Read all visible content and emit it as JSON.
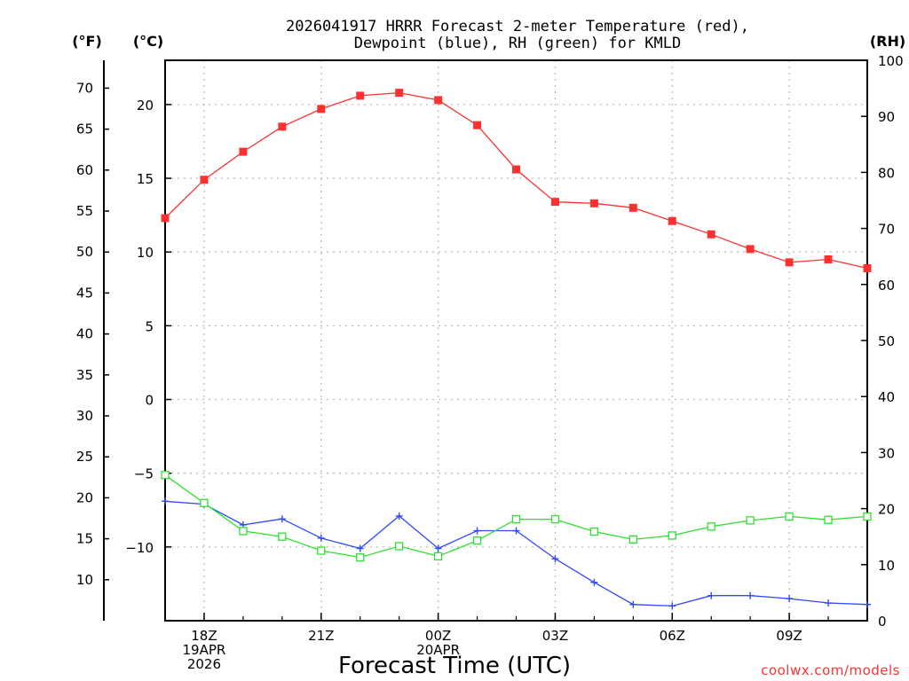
{
  "chart_data": {
    "type": "line",
    "title_line1": "2026041917 HRRR Forecast 2-meter Temperature (red),",
    "title_line2": "Dewpoint (blue), RH (green) for KMLD",
    "xlabel": "Forecast Time (UTC)",
    "credit": "coolwx.com/models",
    "units": {
      "fahrenheit": "(°F)",
      "celsius": "(°C)",
      "rh": "(RH)"
    },
    "x_hours": [
      17,
      18,
      19,
      20,
      21,
      22,
      23,
      24,
      25,
      26,
      27,
      28,
      29,
      30,
      31,
      32,
      33,
      34,
      35
    ],
    "x_ticks": [
      {
        "hour": 18,
        "lines": [
          "18Z",
          "19APR",
          "2026"
        ]
      },
      {
        "hour": 21,
        "lines": [
          "21Z"
        ]
      },
      {
        "hour": 24,
        "lines": [
          "00Z",
          "20APR"
        ]
      },
      {
        "hour": 27,
        "lines": [
          "03Z"
        ]
      },
      {
        "hour": 30,
        "lines": [
          "06Z"
        ]
      },
      {
        "hour": 33,
        "lines": [
          "09Z"
        ]
      }
    ],
    "x_range": [
      17,
      35
    ],
    "celsius_range": [
      -15,
      23
    ],
    "celsius_ticks": [
      20,
      15,
      10,
      5,
      0,
      -5,
      -10
    ],
    "fahrenheit_ticks": [
      70,
      65,
      60,
      55,
      50,
      45,
      40,
      35,
      30,
      25,
      20,
      15,
      10
    ],
    "rh_range": [
      0,
      100
    ],
    "rh_ticks": [
      100,
      90,
      80,
      70,
      60,
      50,
      40,
      30,
      20,
      10,
      0
    ],
    "series": [
      {
        "name": "Temperature",
        "unit": "C",
        "color": "#ff3030",
        "marker": "filled-square",
        "values": [
          12.3,
          14.9,
          16.8,
          18.5,
          19.7,
          20.6,
          20.8,
          20.3,
          18.6,
          15.6,
          13.4,
          13.3,
          13.0,
          12.1,
          11.2,
          10.2,
          9.3,
          9.5,
          8.9
        ]
      },
      {
        "name": "Dewpoint",
        "unit": "C",
        "color": "#3048ff",
        "marker": "plus",
        "values": [
          -6.9,
          -7.1,
          -8.5,
          -8.1,
          -9.4,
          -10.1,
          -7.9,
          -10.1,
          -8.9,
          -8.9,
          -10.8,
          -12.4,
          -13.9,
          -14.0,
          -13.3,
          -13.3,
          -13.5,
          -13.8,
          -13.9
        ]
      },
      {
        "name": "RH",
        "unit": "%",
        "color": "#30e030",
        "marker": "open-square",
        "values": [
          26,
          21,
          16,
          15,
          12.5,
          11.3,
          13.3,
          11.5,
          14.3,
          18.1,
          18.1,
          15.9,
          14.5,
          15.2,
          16.8,
          17.9,
          18.6,
          18.0,
          18.6
        ]
      }
    ]
  }
}
